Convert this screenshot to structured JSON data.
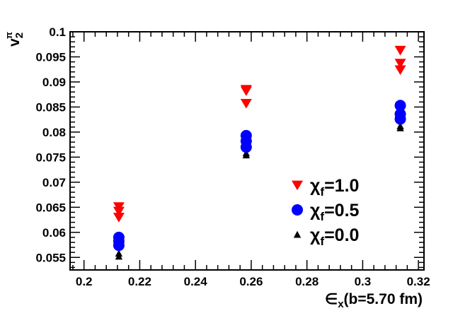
{
  "chart_data": {
    "type": "scatter",
    "x_axis": {
      "range": [
        0.195,
        0.322
      ],
      "tick_labels": [
        "0.2",
        "0.22",
        "0.24",
        "0.26",
        "0.28",
        "0.3",
        "0.32"
      ],
      "title_main": "∈",
      "title_sub": "x",
      "title_rest": "(b=5.70 fm)"
    },
    "y_axis": {
      "range": [
        0.0525,
        0.1
      ],
      "tick_labels": [
        "0.055",
        "0.06",
        "0.065",
        "0.07",
        "0.075",
        "0.08",
        "0.085",
        "0.09",
        "0.095",
        "0.1"
      ],
      "title_main": "v",
      "title_sup": "π",
      "title_sub": "2"
    },
    "grid": false,
    "legend_placement": "bottom-right",
    "series": [
      {
        "name_main": "χ",
        "name_sub": "f",
        "name_rest": "=1.0",
        "marker": "triangle-down",
        "color": "#ff0000",
        "points": [
          {
            "x": 0.2125,
            "y": 0.0651
          },
          {
            "x": 0.2125,
            "y": 0.0642
          },
          {
            "x": 0.2125,
            "y": 0.063
          },
          {
            "x": 0.2582,
            "y": 0.0885
          },
          {
            "x": 0.2582,
            "y": 0.0882
          },
          {
            "x": 0.2582,
            "y": 0.0857
          },
          {
            "x": 0.3135,
            "y": 0.0963
          },
          {
            "x": 0.3135,
            "y": 0.0937
          },
          {
            "x": 0.3135,
            "y": 0.0924
          }
        ]
      },
      {
        "name_main": "χ",
        "name_sub": "f",
        "name_rest": "=0.5",
        "marker": "circle",
        "color": "#0000ff",
        "points": [
          {
            "x": 0.2125,
            "y": 0.059
          },
          {
            "x": 0.2125,
            "y": 0.0582
          },
          {
            "x": 0.2125,
            "y": 0.0574
          },
          {
            "x": 0.2582,
            "y": 0.0793
          },
          {
            "x": 0.2582,
            "y": 0.0782
          },
          {
            "x": 0.2582,
            "y": 0.077
          },
          {
            "x": 0.3135,
            "y": 0.0853
          },
          {
            "x": 0.3135,
            "y": 0.0836
          },
          {
            "x": 0.3135,
            "y": 0.0826
          }
        ]
      },
      {
        "name_main": "χ",
        "name_sub": "f",
        "name_rest": "=0.0",
        "marker": "triangle-up",
        "color": "#000000",
        "points": [
          {
            "x": 0.2125,
            "y": 0.0558
          },
          {
            "x": 0.2125,
            "y": 0.0552
          },
          {
            "x": 0.2582,
            "y": 0.0758
          },
          {
            "x": 0.2582,
            "y": 0.0754
          },
          {
            "x": 0.3135,
            "y": 0.0812
          },
          {
            "x": 0.3135,
            "y": 0.0808
          }
        ]
      }
    ]
  }
}
